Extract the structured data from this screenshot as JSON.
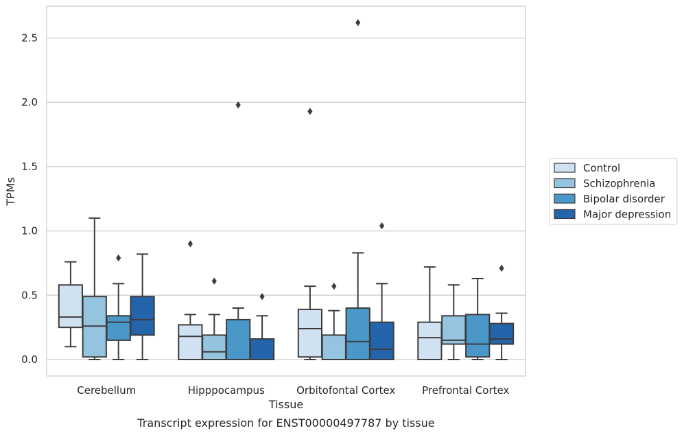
{
  "chart_data": {
    "type": "box",
    "xlabel": "Tissue",
    "ylabel": "TPMs",
    "caption": "Transcript expression for ENST00000497787 by tissue",
    "ylim": [
      -0.12,
      2.75
    ],
    "yticks": [
      0.0,
      0.5,
      1.0,
      1.5,
      2.0,
      2.5
    ],
    "ytick_labels": [
      "0.0",
      "0.5",
      "1.0",
      "1.5",
      "2.0",
      "2.5"
    ],
    "grid": "horizontal",
    "legend_placement": "center-right outside",
    "categories": [
      "Cerebellum",
      "Hipppocampus",
      "Orbitofontal Cortex",
      "Prefrontal Cortex"
    ],
    "series": [
      {
        "name": "Control",
        "color": "#d0e1f2",
        "boxes": [
          {
            "whislo": 0.1,
            "q1": 0.25,
            "med": 0.33,
            "q3": 0.58,
            "whishi": 0.76,
            "fliers": []
          },
          {
            "whislo": 0.0,
            "q1": 0.0,
            "med": 0.18,
            "q3": 0.27,
            "whishi": 0.35,
            "fliers": [
              0.9
            ]
          },
          {
            "whislo": 0.0,
            "q1": 0.02,
            "med": 0.24,
            "q3": 0.39,
            "whishi": 0.57,
            "fliers": [
              1.93
            ]
          },
          {
            "whislo": 0.0,
            "q1": 0.0,
            "med": 0.17,
            "q3": 0.29,
            "whishi": 0.72,
            "fliers": []
          }
        ]
      },
      {
        "name": "Schizophrenia",
        "color": "#94c4df",
        "boxes": [
          {
            "whislo": 0.0,
            "q1": 0.02,
            "med": 0.26,
            "q3": 0.49,
            "whishi": 1.1,
            "fliers": []
          },
          {
            "whislo": 0.0,
            "q1": 0.0,
            "med": 0.06,
            "q3": 0.19,
            "whishi": 0.35,
            "fliers": [
              0.61
            ]
          },
          {
            "whislo": 0.0,
            "q1": 0.0,
            "med": 0.0,
            "q3": 0.19,
            "whishi": 0.38,
            "fliers": [
              0.57
            ]
          },
          {
            "whislo": 0.0,
            "q1": 0.12,
            "med": 0.15,
            "q3": 0.34,
            "whishi": 0.58,
            "fliers": []
          }
        ]
      },
      {
        "name": "Bipolar disorder",
        "color": "#4a98c9",
        "boxes": [
          {
            "whislo": 0.0,
            "q1": 0.15,
            "med": 0.29,
            "q3": 0.34,
            "whishi": 0.59,
            "fliers": [
              0.79
            ]
          },
          {
            "whislo": 0.0,
            "q1": 0.0,
            "med": 0.0,
            "q3": 0.31,
            "whishi": 0.4,
            "fliers": [
              1.98
            ]
          },
          {
            "whislo": 0.0,
            "q1": 0.0,
            "med": 0.14,
            "q3": 0.4,
            "whishi": 0.83,
            "fliers": [
              2.62
            ]
          },
          {
            "whislo": 0.0,
            "q1": 0.02,
            "med": 0.12,
            "q3": 0.35,
            "whishi": 0.63,
            "fliers": []
          }
        ]
      },
      {
        "name": "Major depression",
        "color": "#2464ab",
        "boxes": [
          {
            "whislo": 0.0,
            "q1": 0.19,
            "med": 0.31,
            "q3": 0.49,
            "whishi": 0.82,
            "fliers": []
          },
          {
            "whislo": 0.0,
            "q1": 0.0,
            "med": 0.0,
            "q3": 0.16,
            "whishi": 0.34,
            "fliers": [
              0.49
            ]
          },
          {
            "whislo": 0.0,
            "q1": 0.0,
            "med": 0.08,
            "q3": 0.29,
            "whishi": 0.59,
            "fliers": [
              1.04
            ]
          },
          {
            "whislo": 0.0,
            "q1": 0.12,
            "med": 0.16,
            "q3": 0.28,
            "whishi": 0.36,
            "fliers": [
              0.71
            ]
          }
        ]
      }
    ]
  }
}
